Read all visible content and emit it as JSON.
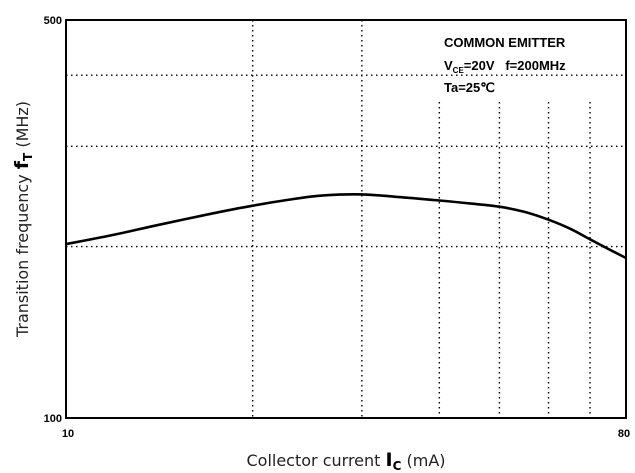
{
  "chart_data": {
    "type": "line",
    "xscale": "log",
    "yscale": "log",
    "xlim": [
      10,
      80
    ],
    "ylim": [
      100,
      500
    ],
    "x_ticks": [
      "10",
      "80"
    ],
    "y_ticks": [
      "500",
      "100"
    ],
    "xlabel": {
      "text": "Collector current",
      "symbol": "I",
      "subscript": "C",
      "unit": "(mA)"
    },
    "ylabel": {
      "text": "Transition frequency",
      "symbol": "f",
      "subscript": "T",
      "unit": "(MHz)"
    },
    "annotations": {
      "line1": "COMMON EMITTER",
      "line2_v": "V",
      "line2_sub": "CE",
      "line2_rest": "=20V   f=200MHz",
      "line3": "Ta=25℃"
    },
    "grid": "dotted",
    "series": [
      {
        "x": [
          10,
          12,
          14,
          17,
          20,
          23,
          26,
          30,
          35,
          40,
          45,
          50,
          55,
          60,
          65,
          70,
          75,
          80
        ],
        "y": [
          202,
          210,
          218,
          228,
          236,
          242,
          246,
          247,
          244,
          241,
          238,
          235,
          230,
          223,
          215,
          206,
          198,
          191
        ],
        "color": "#000000"
      }
    ]
  }
}
